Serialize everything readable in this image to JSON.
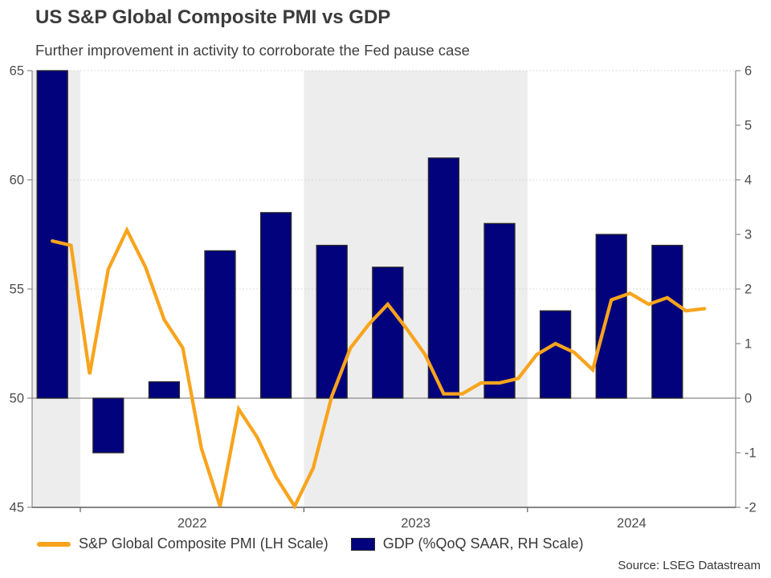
{
  "header": {
    "title": "US S&P Global Composite PMI vs GDP",
    "subtitle": "Further improvement in activity to corroborate the Fed pause case"
  },
  "source": "Source: LSEG Datastream",
  "colors": {
    "pmi_line": "#f8a41d",
    "gdp_bar": "#02027c",
    "bar_outline": "#2b2b2b",
    "year_band": "#ededed",
    "gridline": "#d0d0d0",
    "zero_line": "#8a8a8a",
    "side_axis": "#8a8a8a",
    "bottom_axis": "#5f5f5f",
    "tick_text": "#4c4c4c"
  },
  "chart_data": {
    "type": "combo line + bar, dual axis",
    "title": "US S&P Global Composite PMI vs GDP",
    "subtitle": "Further improvement in activity to corroborate the Fed pause case",
    "left_axis": {
      "range": [
        45,
        65
      ],
      "ticks": [
        45,
        50,
        55,
        60,
        65
      ],
      "grid_ticks": [
        55,
        60,
        65
      ],
      "zero_equivalent": 50,
      "label": "S&P Global Composite PMI (LH Scale)"
    },
    "right_axis": {
      "range": [
        -2,
        6
      ],
      "ticks": [
        -2,
        -1,
        0,
        1,
        2,
        3,
        4,
        5,
        6
      ],
      "label": "GDP (%QoQ SAAR, RH Scale)"
    },
    "x_axis": {
      "year_labels": [
        "2022",
        "2023",
        "2024"
      ],
      "shaded_years": [
        2021,
        2023
      ],
      "grid": "dotted horizontal gridlines",
      "note": "monthly PMI Nov 2021 - Oct 2024, quarterly GDP Q4 2021 - Q3 2024"
    },
    "series": [
      {
        "name": "S&P Global Composite PMI (LH Scale)",
        "type": "line",
        "axis": "left",
        "color": "#f8a41d",
        "months": [
          "2021-11",
          "2021-12",
          "2022-01",
          "2022-02",
          "2022-03",
          "2022-04",
          "2022-05",
          "2022-06",
          "2022-07",
          "2022-08",
          "2022-09",
          "2022-10",
          "2022-11",
          "2022-12",
          "2023-01",
          "2023-02",
          "2023-03",
          "2023-04",
          "2023-05",
          "2023-06",
          "2023-07",
          "2023-08",
          "2023-09",
          "2023-10",
          "2023-11",
          "2023-12",
          "2024-01",
          "2024-02",
          "2024-03",
          "2024-04",
          "2024-05",
          "2024-06",
          "2024-07",
          "2024-08",
          "2024-09",
          "2024-10"
        ],
        "values": [
          57.2,
          57.0,
          51.1,
          55.9,
          57.7,
          56.0,
          53.6,
          52.3,
          47.7,
          44.6,
          49.5,
          48.2,
          46.4,
          45.0,
          46.8,
          50.1,
          52.3,
          53.4,
          54.3,
          53.2,
          52.0,
          50.2,
          50.2,
          50.7,
          50.7,
          50.9,
          52.0,
          52.5,
          52.1,
          51.3,
          54.5,
          54.8,
          54.3,
          54.6,
          54.0,
          54.1
        ]
      },
      {
        "name": "GDP (%QoQ SAAR, RH Scale)",
        "type": "bar",
        "axis": "right",
        "color": "#02027c",
        "quarters": [
          "2021-Q4",
          "2022-Q1",
          "2022-Q2",
          "2022-Q3",
          "2022-Q4",
          "2023-Q1",
          "2023-Q2",
          "2023-Q3",
          "2023-Q4",
          "2024-Q1",
          "2024-Q2",
          "2024-Q3"
        ],
        "values": [
          6.9,
          -1.0,
          0.3,
          2.7,
          3.4,
          2.8,
          2.4,
          4.4,
          3.2,
          1.6,
          3.0,
          2.8
        ],
        "clip_note": "2021-Q4 bar clipped at axis max 6"
      }
    ]
  }
}
